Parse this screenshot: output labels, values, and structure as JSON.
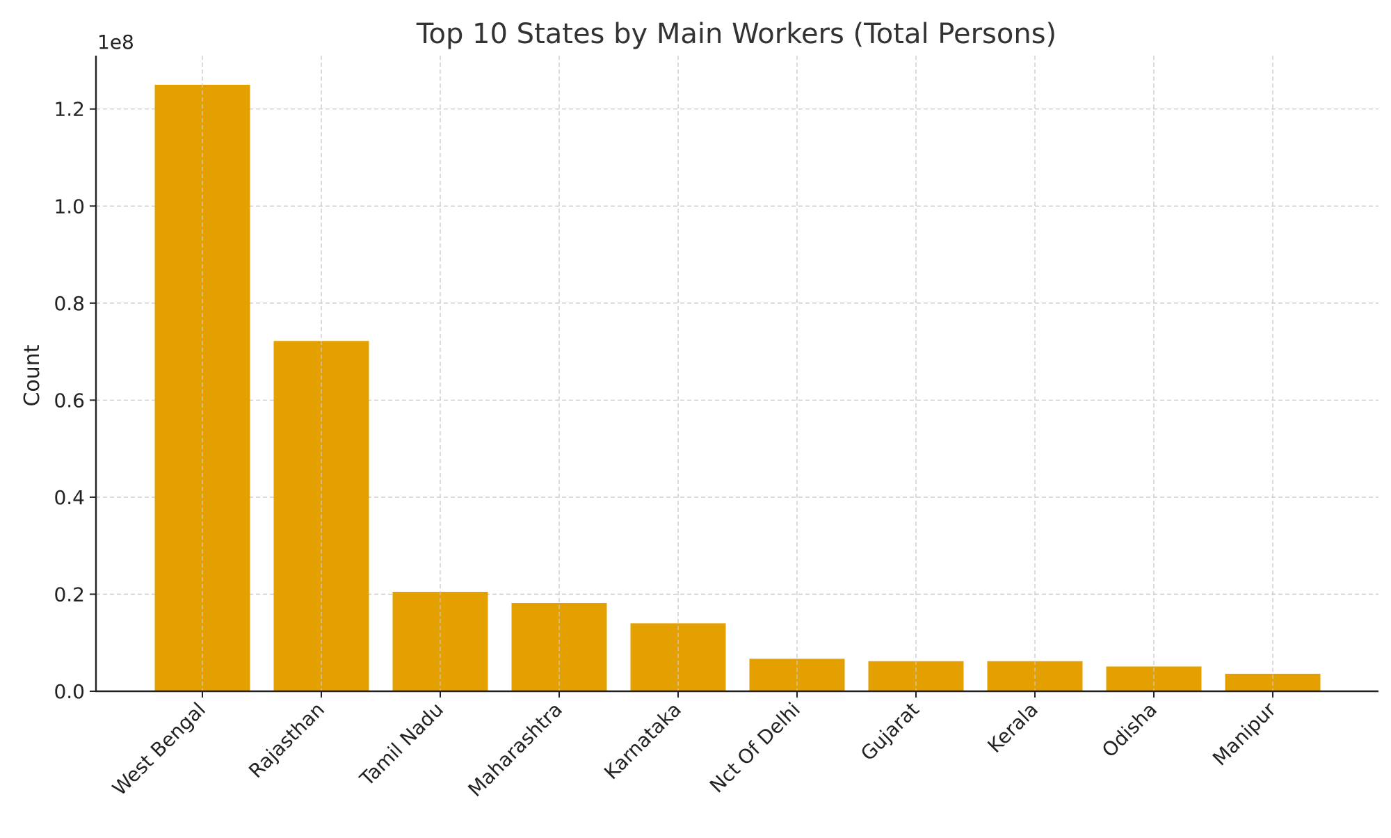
{
  "chart_data": {
    "type": "bar",
    "title": "Top 10 States by Main Workers (Total Persons)",
    "xlabel": "",
    "ylabel": "Count",
    "y_offset_label": "1e8",
    "y_scale": 100000000,
    "categories": [
      "West Bengal",
      "Rajasthan",
      "Tamil Nadu",
      "Maharashtra",
      "Karnataka",
      "Nct Of Delhi",
      "Gujarat",
      "Kerala",
      "Odisha",
      "Manipur"
    ],
    "values": [
      125000000,
      72200000,
      20500000,
      18200000,
      14000000,
      6700000,
      6200000,
      6200000,
      5100000,
      3600000
    ],
    "yticks": [
      0,
      20000000,
      40000000,
      60000000,
      80000000,
      100000000,
      120000000
    ],
    "ytick_labels": [
      "0.0",
      "0.2",
      "0.4",
      "0.6",
      "0.8",
      "1.0",
      "1.2"
    ],
    "ylim": [
      0,
      131000000
    ],
    "grid": true,
    "bar_color": "#E3A000"
  }
}
